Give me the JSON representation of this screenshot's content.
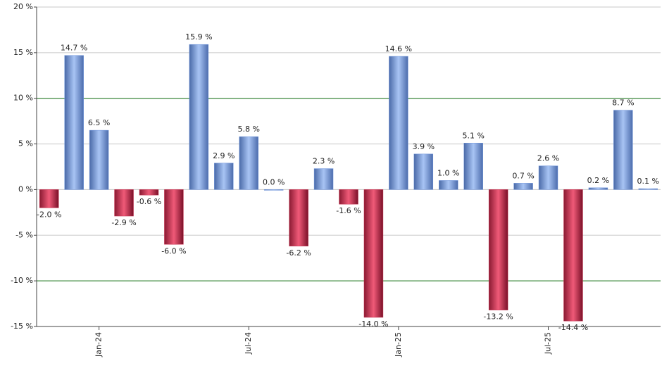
{
  "chart_data": {
    "type": "bar",
    "categories": [
      null,
      null,
      "Jan-24",
      null,
      null,
      null,
      null,
      null,
      "Jul-24",
      null,
      null,
      null,
      null,
      null,
      "Jan-25",
      null,
      null,
      null,
      null,
      null,
      "Jul-25",
      null,
      null,
      null,
      null
    ],
    "values": [
      -2.0,
      14.7,
      6.5,
      -2.9,
      -0.6,
      -6.0,
      15.9,
      2.9,
      5.8,
      0.0,
      -6.2,
      2.3,
      -1.6,
      -14.0,
      14.6,
      3.9,
      1.0,
      5.1,
      -13.2,
      0.7,
      2.6,
      -14.4,
      0.2,
      8.7,
      0.1
    ],
    "value_labels": [
      "-2.0 %",
      "14.7 %",
      "6.5 %",
      "-2.9 %",
      "-0.6 %",
      "-6.0 %",
      "15.9 %",
      "2.9 %",
      "5.8 %",
      "0.0 %",
      "-6.2 %",
      "2.3 %",
      "-1.6 %",
      "-14.0 %",
      "14.6 %",
      "3.9 %",
      "1.0 %",
      "5.1 %",
      "-13.2 %",
      "0.7 %",
      "2.6 %",
      "-14.4 %",
      "0.2 %",
      "8.7 %",
      "0.1 %"
    ],
    "positive_color": "#7096dc",
    "negative_color": "#c8304f",
    "ylim": [
      -15,
      20
    ],
    "yticks": [
      {
        "value": -15,
        "label": "-15 %"
      },
      {
        "value": -10,
        "label": "-10 %"
      },
      {
        "value": -5,
        "label": "-5 %"
      },
      {
        "value": 0,
        "label": "0 %"
      },
      {
        "value": 5,
        "label": "5 %"
      },
      {
        "value": 10,
        "label": "10 %"
      },
      {
        "value": 15,
        "label": "15 %"
      },
      {
        "value": 20,
        "label": "20 %"
      }
    ],
    "grid": true,
    "grid_color": "#c8c8c8",
    "reference_lines": [
      -10,
      10
    ],
    "reference_color": "#1a7a1a"
  }
}
